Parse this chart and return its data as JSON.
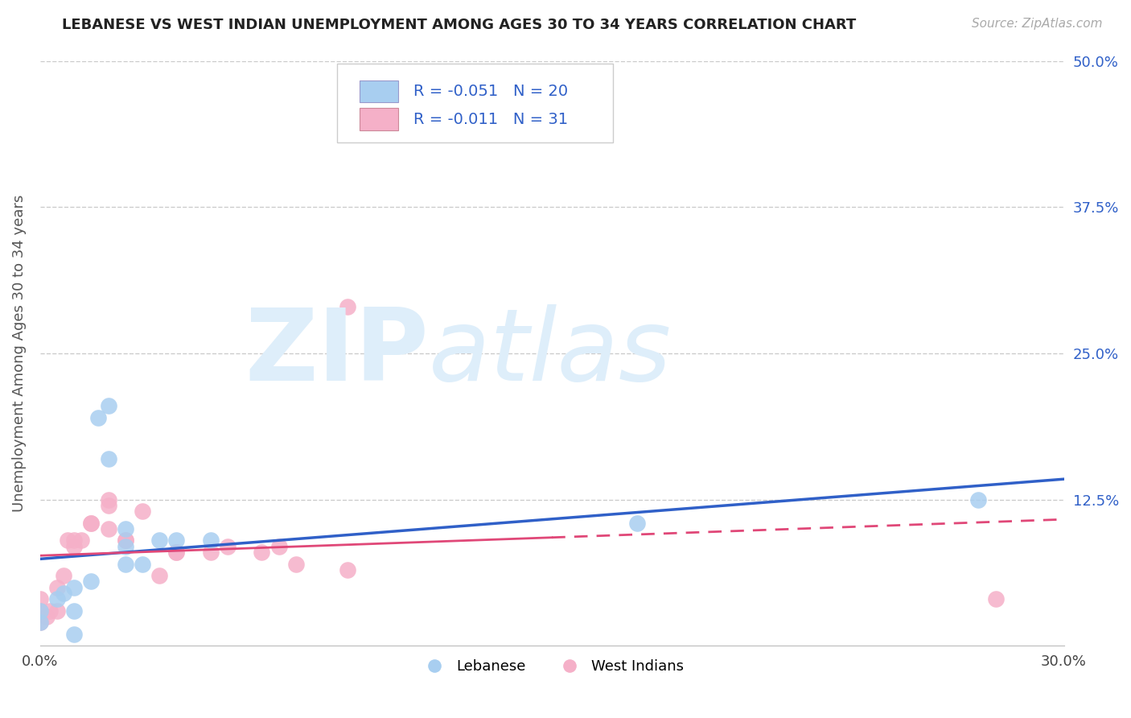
{
  "title": "LEBANESE VS WEST INDIAN UNEMPLOYMENT AMONG AGES 30 TO 34 YEARS CORRELATION CHART",
  "source": "Source: ZipAtlas.com",
  "ylabel": "Unemployment Among Ages 30 to 34 years",
  "xlim": [
    0.0,
    0.3
  ],
  "ylim": [
    0.0,
    0.5
  ],
  "xtick_vals": [
    0.0,
    0.3
  ],
  "xtick_labels": [
    "0.0%",
    "30.0%"
  ],
  "ytick_vals": [
    0.5,
    0.375,
    0.25,
    0.125
  ],
  "ytick_labels": [
    "50.0%",
    "37.5%",
    "25.0%",
    "12.5%"
  ],
  "blue_scatter_color": "#a8cef0",
  "pink_scatter_color": "#f5b0c8",
  "blue_line_color": "#3060c8",
  "pink_line_color": "#e04878",
  "legend_r1": "-0.051",
  "legend_n1": "20",
  "legend_r2": "-0.011",
  "legend_n2": "31",
  "lebanese_x": [
    0.0,
    0.0,
    0.005,
    0.007,
    0.01,
    0.01,
    0.01,
    0.015,
    0.017,
    0.02,
    0.02,
    0.025,
    0.025,
    0.025,
    0.03,
    0.035,
    0.04,
    0.05,
    0.175,
    0.275
  ],
  "lebanese_y": [
    0.02,
    0.03,
    0.04,
    0.045,
    0.05,
    0.03,
    0.01,
    0.055,
    0.195,
    0.205,
    0.16,
    0.085,
    0.1,
    0.07,
    0.07,
    0.09,
    0.09,
    0.09,
    0.105,
    0.125
  ],
  "westindian_x": [
    0.0,
    0.0,
    0.0,
    0.002,
    0.003,
    0.005,
    0.005,
    0.007,
    0.008,
    0.01,
    0.01,
    0.012,
    0.015,
    0.015,
    0.02,
    0.02,
    0.02,
    0.025,
    0.025,
    0.03,
    0.035,
    0.04,
    0.04,
    0.05,
    0.055,
    0.065,
    0.07,
    0.075,
    0.09,
    0.09,
    0.28
  ],
  "westindian_y": [
    0.02,
    0.03,
    0.04,
    0.025,
    0.03,
    0.03,
    0.05,
    0.06,
    0.09,
    0.09,
    0.085,
    0.09,
    0.105,
    0.105,
    0.1,
    0.12,
    0.125,
    0.09,
    0.09,
    0.115,
    0.06,
    0.08,
    0.08,
    0.08,
    0.085,
    0.08,
    0.085,
    0.07,
    0.065,
    0.29,
    0.04
  ]
}
